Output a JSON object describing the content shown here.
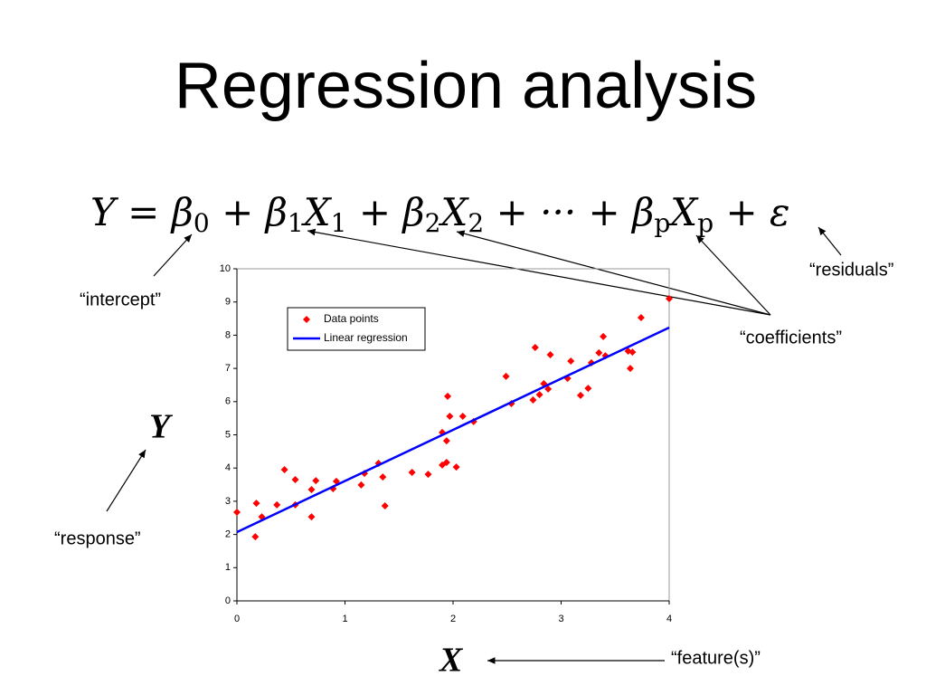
{
  "slide": {
    "title": "Regression analysis",
    "equation": [
      {
        "text": "Y = β",
        "sub": "0"
      },
      {
        "text": " + β",
        "sub": "1"
      },
      {
        "text": "X",
        "sub": "1"
      },
      {
        "text": " + β",
        "sub": "2"
      },
      {
        "text": "X",
        "sub": "2"
      },
      {
        "text": " + ··· + β",
        "sub": "p"
      },
      {
        "text": "X",
        "sub": "p"
      },
      {
        "text": " + ε"
      }
    ],
    "labels": {
      "intercept": "“intercept”",
      "residuals": "“residuals”",
      "coefficients": "“coefficients”",
      "response": "“response”",
      "features": "“feature(s)”",
      "y_symbol": "Y",
      "x_symbol": "X"
    }
  },
  "chart_data": {
    "type": "scatter",
    "xlim": [
      0,
      4
    ],
    "ylim": [
      0,
      10
    ],
    "xticks": [
      0,
      1,
      2,
      3,
      4
    ],
    "yticks": [
      0,
      1,
      2,
      3,
      4,
      5,
      6,
      7,
      8,
      9,
      10
    ],
    "series": [
      {
        "name": "Data points",
        "color": "#ff0000",
        "marker": "diamond",
        "x": [
          0,
          0.18,
          0.17,
          0.23,
          0.37,
          0.44,
          0.54,
          0.54,
          0.69,
          0.69,
          0.73,
          0.89,
          0.92,
          1.15,
          1.18,
          1.31,
          1.35,
          1.37,
          1.62,
          1.77,
          1.9,
          1.9,
          1.94,
          1.94,
          1.95,
          1.97,
          2.03,
          2.09,
          2.19,
          2.49,
          2.54,
          2.74,
          2.76,
          2.8,
          2.84,
          2.88,
          2.9,
          3.06,
          3.09,
          3.18,
          3.25,
          3.28,
          3.35,
          3.39,
          3.41,
          3.62,
          3.64,
          3.66,
          3.74,
          4.0
        ],
        "values": [
          2.67,
          2.94,
          1.93,
          2.53,
          2.89,
          3.95,
          2.89,
          3.65,
          3.35,
          2.53,
          3.62,
          3.38,
          3.6,
          3.49,
          3.84,
          4.14,
          3.73,
          2.86,
          3.87,
          3.81,
          4.09,
          5.07,
          4.17,
          4.82,
          6.16,
          5.56,
          4.03,
          5.56,
          5.4,
          6.76,
          5.94,
          6.05,
          7.63,
          6.21,
          6.54,
          6.38,
          7.41,
          6.7,
          7.22,
          6.19,
          6.4,
          7.17,
          7.47,
          7.96,
          7.38,
          7.52,
          7.0,
          7.49,
          8.53,
          9.1
        ]
      },
      {
        "name": "Linear regression",
        "color": "#0000ff",
        "marker": "line",
        "x": [
          0,
          4
        ],
        "values": [
          2.07,
          8.23
        ]
      }
    ]
  }
}
